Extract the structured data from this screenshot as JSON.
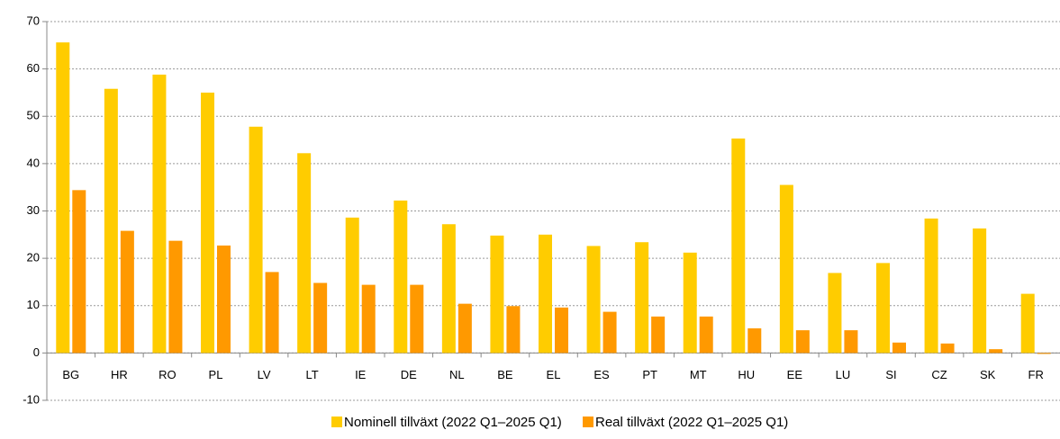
{
  "chart_data": {
    "type": "bar",
    "categories": [
      "BG",
      "HR",
      "RO",
      "PL",
      "LV",
      "LT",
      "IE",
      "DE",
      "NL",
      "BE",
      "EL",
      "ES",
      "PT",
      "MT",
      "HU",
      "EE",
      "LU",
      "SI",
      "CZ",
      "SK",
      "FR"
    ],
    "series": [
      {
        "name": "Nominell tillväxt (2022 Q1–2025 Q1)",
        "color": "#ffcc00",
        "values": [
          65.6,
          55.8,
          58.8,
          55.0,
          47.8,
          42.2,
          28.6,
          32.2,
          27.2,
          24.8,
          25.0,
          22.6,
          23.4,
          21.2,
          45.3,
          35.5,
          16.9,
          19.0,
          28.4,
          26.3,
          12.5
        ]
      },
      {
        "name": "Real tillväxt (2022 Q1–2025 Q1)",
        "color": "#ff9900",
        "values": [
          34.4,
          25.8,
          23.7,
          22.7,
          17.1,
          14.8,
          14.4,
          14.4,
          10.4,
          9.9,
          9.6,
          8.7,
          7.7,
          7.7,
          5.2,
          4.8,
          4.8,
          2.2,
          2.0,
          0.8,
          -0.2
        ]
      }
    ],
    "ylim": [
      -10,
      70
    ],
    "yticks": [
      -10,
      0,
      10,
      20,
      30,
      40,
      50,
      60,
      70
    ],
    "grid": true
  }
}
